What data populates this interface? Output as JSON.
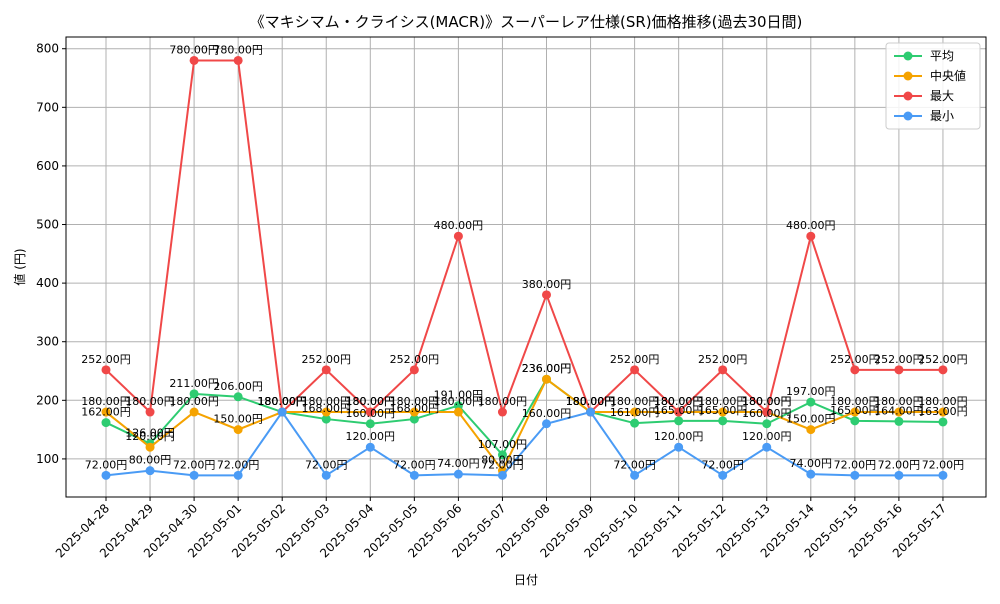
{
  "chart_data": {
    "type": "line",
    "title": "《マキシマム・クライシス(MACR)》スーパーレア仕様(SR)価格推移(過去30日間)",
    "xlabel": "日付",
    "ylabel": "値 (円)",
    "ylim": [
      35,
      820
    ],
    "yticks": [
      100,
      200,
      300,
      400,
      500,
      600,
      700,
      800
    ],
    "grid": true,
    "legend_position": "top-right",
    "value_suffix": "円",
    "categories": [
      "2025-04-28",
      "2025-04-29",
      "2025-04-30",
      "2025-05-01",
      "2025-05-02",
      "2025-05-03",
      "2025-05-04",
      "2025-05-05",
      "2025-05-06",
      "2025-05-07",
      "2025-05-08",
      "2025-05-09",
      "2025-05-10",
      "2025-05-11",
      "2025-05-12",
      "2025-05-13",
      "2025-05-14",
      "2025-05-15",
      "2025-05-16",
      "2025-05-17"
    ],
    "series": [
      {
        "name": "平均",
        "color": "#2ecc71",
        "values": [
          162,
          126,
          211,
          206,
          180,
          168,
          160,
          168,
          191,
          107,
          236,
          180,
          161,
          165,
          165,
          160,
          197,
          165,
          164,
          163
        ]
      },
      {
        "name": "中央値",
        "color": "#f5a300",
        "values": [
          180,
          120,
          180,
          150,
          180,
          180,
          180,
          180,
          180,
          80,
          236,
          180,
          180,
          180,
          180,
          180,
          150,
          180,
          180,
          180
        ]
      },
      {
        "name": "最大",
        "color": "#f04848",
        "values": [
          252,
          180,
          780,
          780,
          180,
          252,
          180,
          252,
          480,
          180,
          380,
          180,
          252,
          180,
          252,
          180,
          480,
          252,
          252,
          252
        ]
      },
      {
        "name": "最小",
        "color": "#4a9bf5",
        "values": [
          72,
          80,
          72,
          72,
          180,
          72,
          120,
          72,
          74,
          72,
          160,
          180,
          72,
          120,
          72,
          120,
          74,
          72,
          72,
          72
        ]
      }
    ]
  }
}
